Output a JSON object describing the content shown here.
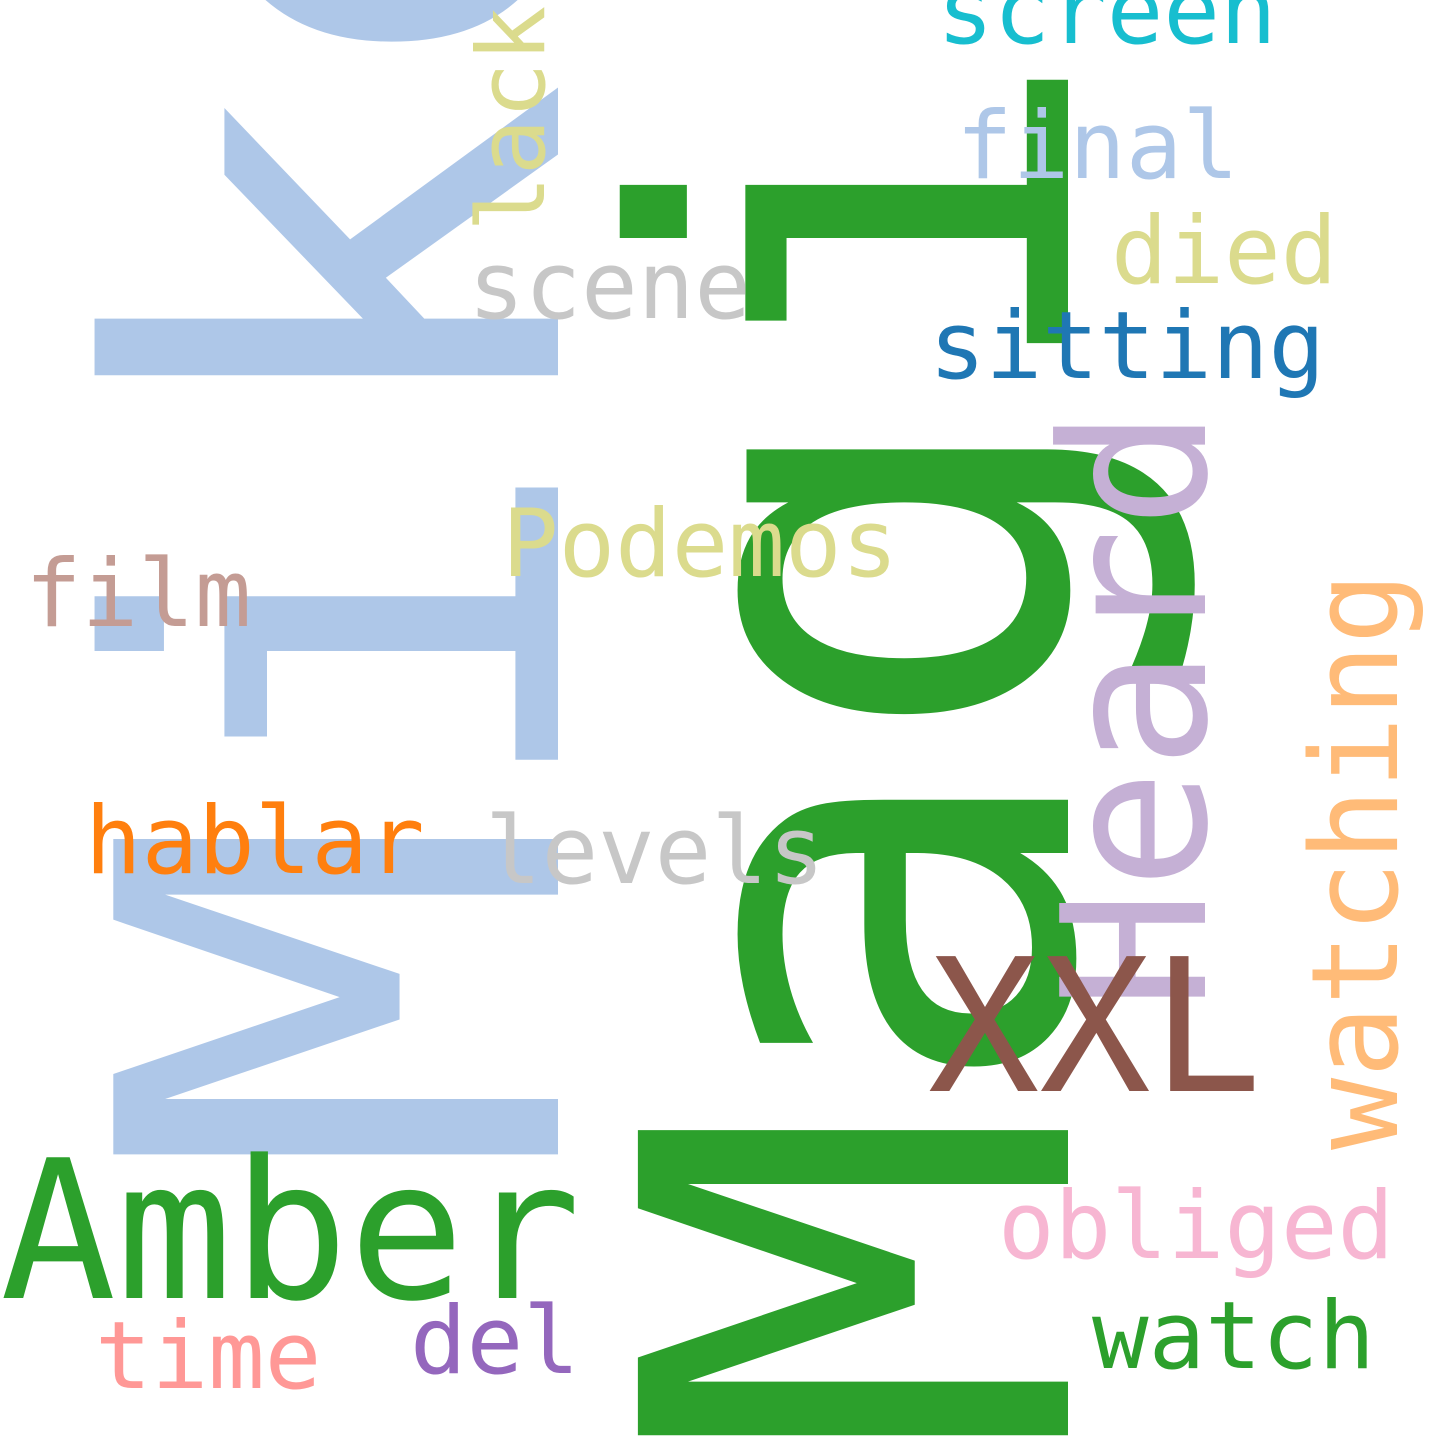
{
  "words": [
    {
      "id": "magic",
      "text": "Magic",
      "color": "#2ca02c"
    },
    {
      "id": "mike",
      "text": "Mike",
      "color": "#aec7e8"
    },
    {
      "id": "heard",
      "text": "Heard",
      "color": "#c5b0d5"
    },
    {
      "id": "amber",
      "text": "Amber",
      "color": "#2ca02c"
    },
    {
      "id": "xxl",
      "text": "XXL",
      "color": "#8c564b"
    },
    {
      "id": "watching",
      "text": "watching",
      "color": "#ffbb78"
    },
    {
      "id": "podemos",
      "text": "Podemos",
      "color": "#dbdb8d"
    },
    {
      "id": "screen",
      "text": "screen",
      "color": "#17becf"
    },
    {
      "id": "final",
      "text": "final",
      "color": "#aec7e8"
    },
    {
      "id": "sitting",
      "text": "sitting",
      "color": "#1f77b4"
    },
    {
      "id": "died",
      "text": "died",
      "color": "#dbdb8d"
    },
    {
      "id": "scene",
      "text": "scene",
      "color": "#c7c7c7"
    },
    {
      "id": "lack",
      "text": "lack",
      "color": "#dbdb8d"
    },
    {
      "id": "film",
      "text": "film",
      "color": "#c49c94"
    },
    {
      "id": "hablar",
      "text": "hablar",
      "color": "#ff7f0e"
    },
    {
      "id": "levels",
      "text": "levels",
      "color": "#c7c7c7"
    },
    {
      "id": "obliged",
      "text": "obliged",
      "color": "#f7b6d2"
    },
    {
      "id": "watch",
      "text": "watch",
      "color": "#2ca02c"
    },
    {
      "id": "del",
      "text": "del",
      "color": "#9467bd"
    },
    {
      "id": "time",
      "text": "time",
      "color": "#ff9896"
    }
  ]
}
